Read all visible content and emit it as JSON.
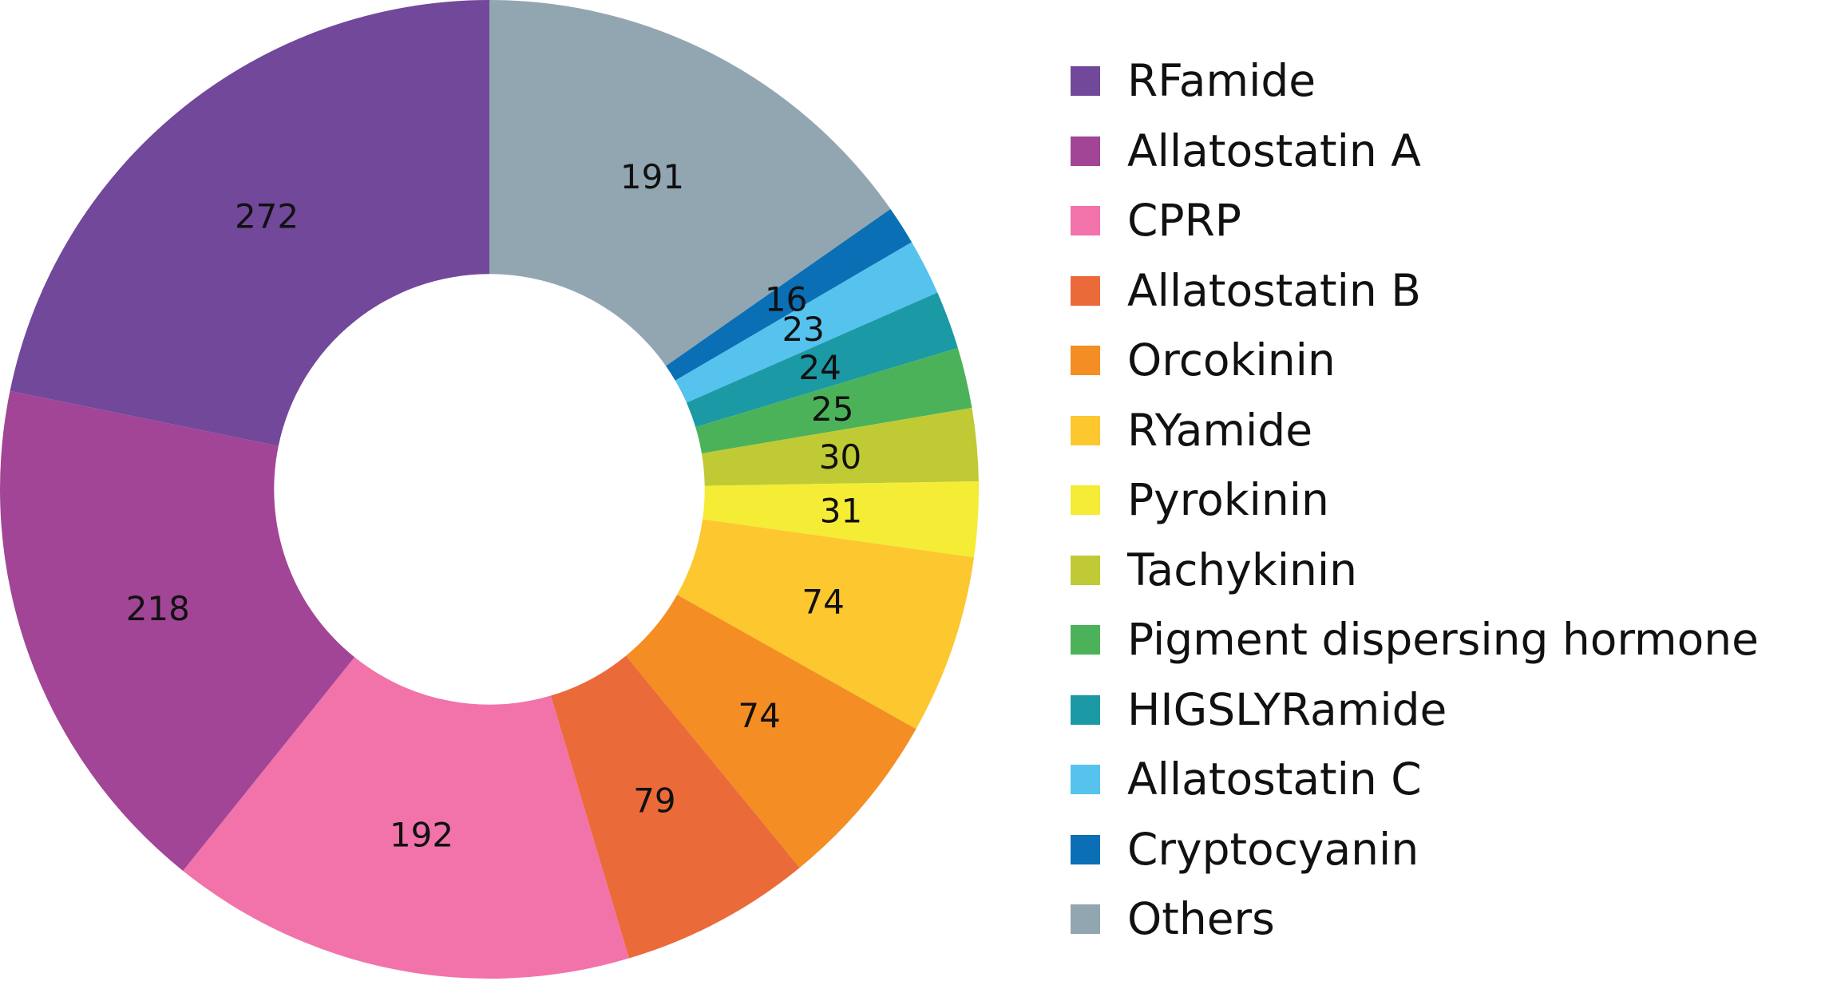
{
  "chart_data": {
    "type": "pie",
    "title": "",
    "legend_position": "right",
    "start_angle_deg": 0,
    "direction": "clockwise",
    "inner_radius_ratio": 0.44,
    "slices": [
      {
        "name": "Others",
        "value": 191,
        "color": "#92A6B1"
      },
      {
        "name": "Cryptocyanin",
        "value": 16,
        "color": "#0B6FB5"
      },
      {
        "name": "Allatostatin C",
        "value": 23,
        "color": "#55C3EE"
      },
      {
        "name": "HIGSLYRamide",
        "value": 24,
        "color": "#1B9AA6"
      },
      {
        "name": "Pigment dispersing hormone",
        "value": 25,
        "color": "#4CB25A"
      },
      {
        "name": "Tachykinin",
        "value": 30,
        "color": "#BFCA35"
      },
      {
        "name": "Pyrokinin",
        "value": 31,
        "color": "#F5EC36"
      },
      {
        "name": "RYamide",
        "value": 74,
        "color": "#FCC72F"
      },
      {
        "name": "Orcokinin",
        "value": 74,
        "color": "#F48D23"
      },
      {
        "name": "Allatostatin B",
        "value": 79,
        "color": "#EB6A39"
      },
      {
        "name": "CPRP",
        "value": 192,
        "color": "#F173AA"
      },
      {
        "name": "Allatostatin A",
        "value": 218,
        "color": "#A24596"
      },
      {
        "name": "RFamide",
        "value": 272,
        "color": "#72489B"
      }
    ],
    "legend_order": [
      "RFamide",
      "Allatostatin A",
      "CPRP",
      "Allatostatin B",
      "Orcokinin",
      "RYamide",
      "Pyrokinin",
      "Tachykinin",
      "Pigment dispersing hormone",
      "HIGSLYRamide",
      "Allatostatin C",
      "Cryptocyanin",
      "Others"
    ]
  }
}
